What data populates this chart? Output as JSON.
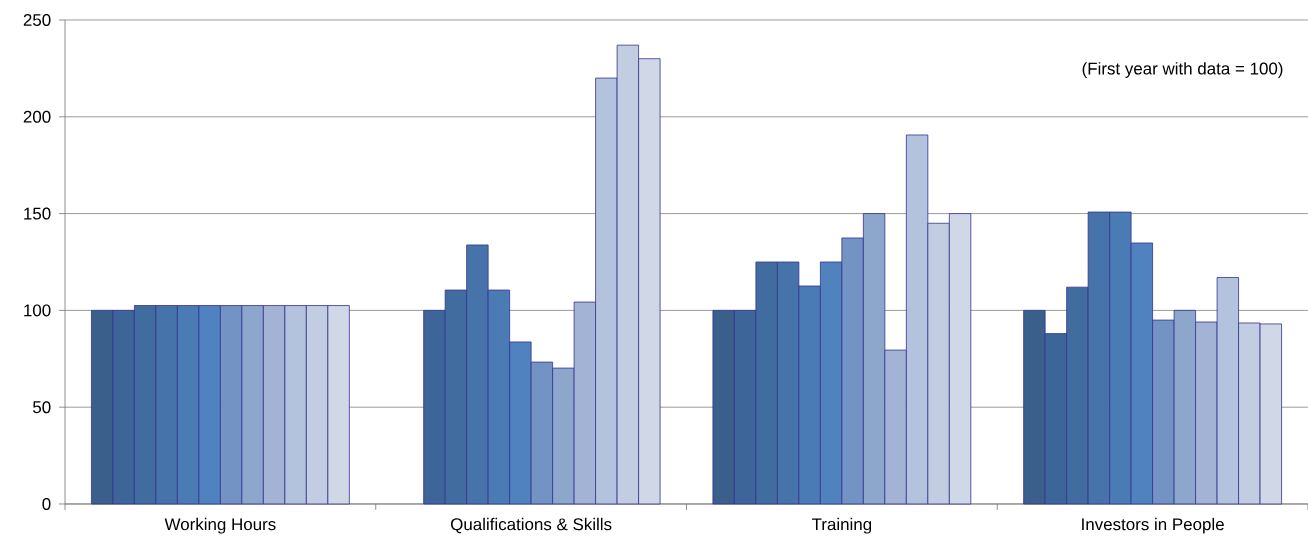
{
  "chart_data": {
    "type": "bar",
    "categories": [
      "Working Hours",
      "Qualifications & Skills",
      "Training",
      "Investors in People"
    ],
    "series": [
      {
        "color": "#3a5f8a",
        "values": [
          100,
          null,
          100,
          100
        ]
      },
      {
        "color": "#3d6599",
        "values": [
          100,
          100,
          100,
          88
        ]
      },
      {
        "color": "#416ca0",
        "values": [
          102.5,
          110.5,
          125,
          112
        ]
      },
      {
        "color": "#4674aa",
        "values": [
          102.5,
          133.8,
          125,
          150.8
        ]
      },
      {
        "color": "#4a7bb5",
        "values": [
          102.5,
          110.5,
          112.6,
          150.8
        ]
      },
      {
        "color": "#4f82bf",
        "values": [
          102.5,
          83.7,
          125,
          134.8
        ]
      },
      {
        "color": "#7293c4",
        "values": [
          102.5,
          73.3,
          137.4,
          95
        ]
      },
      {
        "color": "#8ca6cc",
        "values": [
          102.5,
          70.2,
          150,
          100
        ]
      },
      {
        "color": "#a2b3d6",
        "values": [
          102.5,
          104.3,
          79.5,
          94
        ]
      },
      {
        "color": "#b3c2dd",
        "values": [
          102.5,
          220,
          190.6,
          117
        ]
      },
      {
        "color": "#c3cde2",
        "values": [
          102.5,
          237,
          145,
          93.5
        ]
      },
      {
        "color": "#d0d8e8",
        "values": [
          102.5,
          230,
          150,
          93
        ]
      }
    ],
    "ylim": [
      0,
      250
    ],
    "yticks": [
      0,
      50,
      100,
      150,
      200,
      250
    ],
    "grid": "y",
    "annotations": [
      "(First year with data = 100)"
    ]
  }
}
